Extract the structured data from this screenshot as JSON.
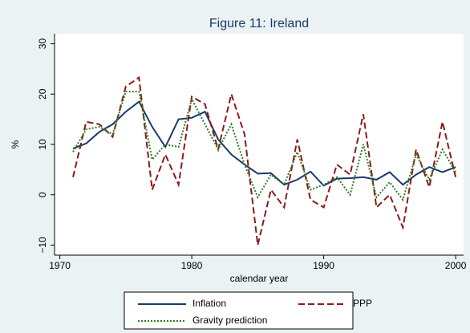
{
  "chart_data": {
    "type": "line",
    "title": "Figure 11: Ireland",
    "x_label": "calendar year",
    "y_label": "%",
    "x": [
      1971,
      1972,
      1973,
      1974,
      1975,
      1976,
      1977,
      1978,
      1979,
      1980,
      1981,
      1982,
      1983,
      1984,
      1985,
      1986,
      1987,
      1988,
      1989,
      1990,
      1991,
      1992,
      1993,
      1994,
      1995,
      1996,
      1997,
      1998,
      1999,
      2000
    ],
    "series": [
      {
        "name": "Inflation",
        "color": "#1a3a6b",
        "dash": "solid",
        "values": [
          9.2,
          10.2,
          12.5,
          14,
          16.5,
          18.5,
          13.5,
          9.5,
          15,
          15.3,
          16.5,
          11,
          8,
          6,
          4.2,
          4.3,
          2,
          3,
          4.6,
          1.8,
          3.2,
          3.3,
          3.5,
          3,
          4.5,
          2,
          4,
          5.5,
          4.5,
          5.5
        ]
      },
      {
        "name": "PPP",
        "color": "#8b1a1a",
        "dash": "dashed",
        "values": [
          3.5,
          14.5,
          14,
          11.5,
          21.5,
          23.3,
          1,
          8,
          2,
          19.5,
          18,
          9,
          20,
          12,
          -10,
          1,
          -2.5,
          11,
          -1,
          -2.5,
          6,
          4,
          16,
          -2.5,
          0,
          -6.5,
          9,
          1.5,
          14.5,
          3.5
        ]
      },
      {
        "name": "Gravity prediction",
        "color": "#2e7d1e",
        "dash": "dotted",
        "values": [
          8.5,
          13,
          13.5,
          12,
          20.5,
          20.5,
          7,
          10,
          9.5,
          19,
          14,
          9,
          14,
          6,
          -0.5,
          4,
          2,
          8.5,
          1,
          2,
          3.5,
          0,
          10,
          -0.5,
          2.5,
          -1,
          8,
          3,
          9,
          4.5
        ]
      }
    ],
    "xlim": [
      1969.6,
      2000.6
    ],
    "ylim": [
      -12,
      32
    ],
    "xticks": [
      1970,
      1980,
      1990,
      2000
    ],
    "yticks": [
      {
        "value": -10,
        "label": "−10"
      },
      0,
      10,
      20,
      30
    ]
  }
}
